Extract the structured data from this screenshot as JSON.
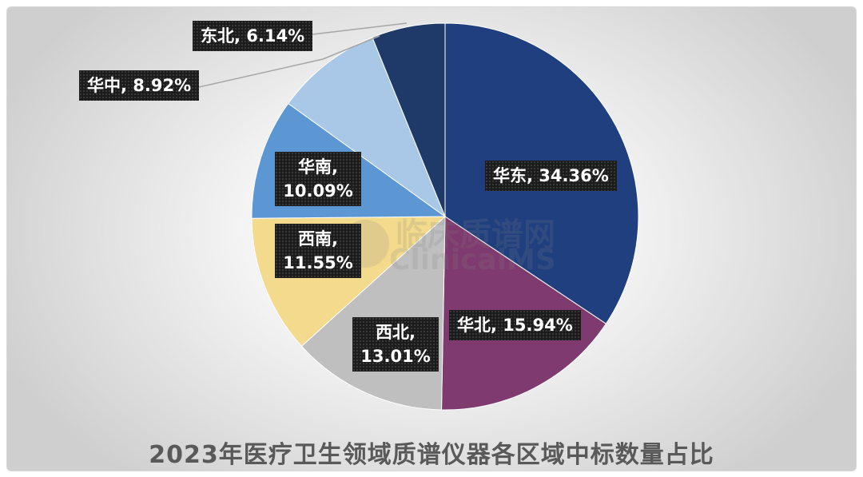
{
  "chart_data": {
    "type": "pie",
    "title": "2023年医疗卫生领域质谱仪器各区域中标数量占比",
    "slices": [
      {
        "label": "华东",
        "value": 34.36,
        "display": "华东, 34.36%",
        "color": "#203f7f"
      },
      {
        "label": "华北",
        "value": 15.94,
        "display": "华北, 15.94%",
        "color": "#7f3b6f"
      },
      {
        "label": "西北",
        "value": 13.01,
        "display": "西北, 13.01%",
        "color": "#bfbfbf"
      },
      {
        "label": "西南",
        "value": 11.55,
        "display": "西南, 11.55%",
        "color": "#f3da8c"
      },
      {
        "label": "华南",
        "value": 10.09,
        "display": "华南, 10.09%",
        "color": "#5d97d3"
      },
      {
        "label": "华中",
        "value": 8.92,
        "display": "华中, 8.92%",
        "color": "#a9c7e6"
      },
      {
        "label": "东北",
        "value": 6.14,
        "display": "东北, 6.14%",
        "color": "#1f3a68"
      }
    ]
  },
  "watermark": {
    "cn": "临床质谱网",
    "en": "ClinicalMS"
  }
}
